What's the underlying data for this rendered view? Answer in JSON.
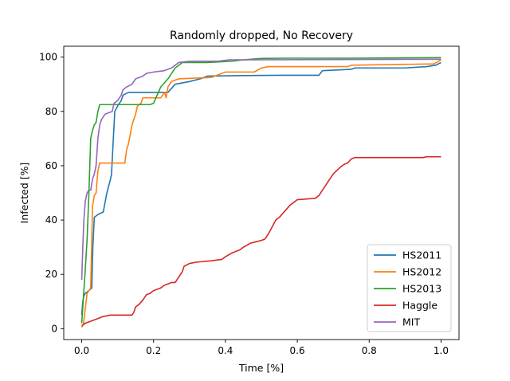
{
  "chart_data": {
    "type": "line",
    "title": "Randomly dropped, No Recovery",
    "xlabel": "Time [%]",
    "ylabel": "Infected [%]",
    "xlim": [
      -0.05,
      1.05
    ],
    "ylim": [
      -4,
      104
    ],
    "xticks": [
      0.0,
      0.2,
      0.4,
      0.6,
      0.8,
      1.0
    ],
    "xtick_labels": [
      "0.0",
      "0.2",
      "0.4",
      "0.6",
      "0.8",
      "1.0"
    ],
    "yticks": [
      0,
      20,
      40,
      60,
      80,
      100
    ],
    "ytick_labels": [
      "0",
      "20",
      "40",
      "60",
      "80",
      "100"
    ],
    "grid": false,
    "legend_position": "lower-right",
    "series": [
      {
        "name": "HS2011",
        "color": "#1f77b4",
        "points": [
          [
            0.0,
            5
          ],
          [
            0.003,
            10
          ],
          [
            0.006,
            12
          ],
          [
            0.01,
            13
          ],
          [
            0.02,
            14
          ],
          [
            0.028,
            15
          ],
          [
            0.031,
            30
          ],
          [
            0.035,
            41
          ],
          [
            0.045,
            42
          ],
          [
            0.06,
            43
          ],
          [
            0.07,
            50
          ],
          [
            0.08,
            55
          ],
          [
            0.083,
            57
          ],
          [
            0.088,
            70
          ],
          [
            0.092,
            80
          ],
          [
            0.1,
            82
          ],
          [
            0.11,
            84
          ],
          [
            0.115,
            86
          ],
          [
            0.13,
            87
          ],
          [
            0.18,
            87
          ],
          [
            0.24,
            87
          ],
          [
            0.26,
            90
          ],
          [
            0.3,
            91
          ],
          [
            0.33,
            92
          ],
          [
            0.35,
            93
          ],
          [
            0.45,
            93.2
          ],
          [
            0.55,
            93.3
          ],
          [
            0.66,
            93.3
          ],
          [
            0.67,
            95
          ],
          [
            0.75,
            95.5
          ],
          [
            0.76,
            96
          ],
          [
            0.9,
            96
          ],
          [
            0.96,
            96.5
          ],
          [
            0.985,
            97
          ],
          [
            1.0,
            98
          ]
        ]
      },
      {
        "name": "HS2012",
        "color": "#ff7f0e",
        "points": [
          [
            0.0,
            0.5
          ],
          [
            0.005,
            2
          ],
          [
            0.015,
            13
          ],
          [
            0.025,
            15
          ],
          [
            0.03,
            45
          ],
          [
            0.035,
            49
          ],
          [
            0.04,
            50
          ],
          [
            0.045,
            58
          ],
          [
            0.05,
            61
          ],
          [
            0.09,
            61
          ],
          [
            0.1,
            61
          ],
          [
            0.12,
            61
          ],
          [
            0.125,
            66
          ],
          [
            0.13,
            68
          ],
          [
            0.14,
            75
          ],
          [
            0.15,
            79
          ],
          [
            0.155,
            82
          ],
          [
            0.165,
            83
          ],
          [
            0.17,
            85
          ],
          [
            0.22,
            85
          ],
          [
            0.23,
            87
          ],
          [
            0.235,
            85
          ],
          [
            0.24,
            89
          ],
          [
            0.25,
            91
          ],
          [
            0.27,
            92
          ],
          [
            0.36,
            92.5
          ],
          [
            0.4,
            94.5
          ],
          [
            0.48,
            94.5
          ],
          [
            0.5,
            96
          ],
          [
            0.52,
            96.5
          ],
          [
            0.74,
            96.5
          ],
          [
            0.75,
            97
          ],
          [
            0.98,
            97.5
          ],
          [
            1.0,
            99
          ]
        ]
      },
      {
        "name": "HS2013",
        "color": "#2ca02c",
        "points": [
          [
            0.0,
            2
          ],
          [
            0.005,
            12
          ],
          [
            0.01,
            22
          ],
          [
            0.015,
            33
          ],
          [
            0.02,
            50
          ],
          [
            0.025,
            70
          ],
          [
            0.03,
            73
          ],
          [
            0.035,
            75
          ],
          [
            0.04,
            76
          ],
          [
            0.045,
            80
          ],
          [
            0.05,
            82.5
          ],
          [
            0.13,
            82.5
          ],
          [
            0.19,
            82.5
          ],
          [
            0.2,
            83
          ],
          [
            0.21,
            86
          ],
          [
            0.22,
            89
          ],
          [
            0.24,
            92
          ],
          [
            0.26,
            96
          ],
          [
            0.27,
            97
          ],
          [
            0.28,
            98
          ],
          [
            0.35,
            98
          ],
          [
            0.42,
            98.5
          ],
          [
            0.45,
            99
          ],
          [
            0.5,
            99.5
          ],
          [
            0.56,
            99.6
          ],
          [
            0.75,
            99.6
          ],
          [
            1.0,
            99.8
          ]
        ]
      },
      {
        "name": "Haggle",
        "color": "#d62728",
        "points": [
          [
            0.0,
            1
          ],
          [
            0.005,
            1.5
          ],
          [
            0.01,
            2
          ],
          [
            0.02,
            2.5
          ],
          [
            0.04,
            3.5
          ],
          [
            0.06,
            4.5
          ],
          [
            0.08,
            5
          ],
          [
            0.14,
            5
          ],
          [
            0.145,
            6
          ],
          [
            0.15,
            8
          ],
          [
            0.16,
            9
          ],
          [
            0.17,
            10.5
          ],
          [
            0.18,
            12.5
          ],
          [
            0.19,
            13
          ],
          [
            0.2,
            14
          ],
          [
            0.22,
            15
          ],
          [
            0.23,
            16
          ],
          [
            0.25,
            17
          ],
          [
            0.26,
            17
          ],
          [
            0.27,
            19
          ],
          [
            0.28,
            21
          ],
          [
            0.285,
            23
          ],
          [
            0.3,
            24
          ],
          [
            0.32,
            24.5
          ],
          [
            0.36,
            25
          ],
          [
            0.39,
            25.5
          ],
          [
            0.4,
            26.5
          ],
          [
            0.42,
            28
          ],
          [
            0.44,
            29
          ],
          [
            0.45,
            30
          ],
          [
            0.47,
            31.5
          ],
          [
            0.5,
            32.5
          ],
          [
            0.51,
            33
          ],
          [
            0.52,
            35
          ],
          [
            0.53,
            37.5
          ],
          [
            0.54,
            40
          ],
          [
            0.55,
            41
          ],
          [
            0.56,
            42.5
          ],
          [
            0.57,
            44
          ],
          [
            0.58,
            45.5
          ],
          [
            0.59,
            46.5
          ],
          [
            0.6,
            47.5
          ],
          [
            0.65,
            48
          ],
          [
            0.66,
            49
          ],
          [
            0.67,
            51
          ],
          [
            0.68,
            53
          ],
          [
            0.69,
            55
          ],
          [
            0.7,
            57
          ],
          [
            0.72,
            59.5
          ],
          [
            0.73,
            60.5
          ],
          [
            0.74,
            61
          ],
          [
            0.75,
            62.5
          ],
          [
            0.76,
            63
          ],
          [
            0.95,
            63
          ],
          [
            0.96,
            63.3
          ],
          [
            1.0,
            63.3
          ]
        ]
      },
      {
        "name": "MIT",
        "color": "#9467bd",
        "points": [
          [
            0.0,
            18
          ],
          [
            0.003,
            30
          ],
          [
            0.006,
            40
          ],
          [
            0.01,
            47
          ],
          [
            0.015,
            50
          ],
          [
            0.02,
            51
          ],
          [
            0.025,
            51
          ],
          [
            0.03,
            55
          ],
          [
            0.035,
            57
          ],
          [
            0.04,
            60
          ],
          [
            0.045,
            70
          ],
          [
            0.05,
            75
          ],
          [
            0.055,
            77
          ],
          [
            0.065,
            79
          ],
          [
            0.085,
            80
          ],
          [
            0.09,
            83
          ],
          [
            0.1,
            84
          ],
          [
            0.11,
            86
          ],
          [
            0.115,
            88
          ],
          [
            0.125,
            89
          ],
          [
            0.14,
            90
          ],
          [
            0.15,
            92
          ],
          [
            0.17,
            93
          ],
          [
            0.18,
            94
          ],
          [
            0.2,
            94.5
          ],
          [
            0.23,
            95
          ],
          [
            0.25,
            96
          ],
          [
            0.27,
            98
          ],
          [
            0.3,
            98.5
          ],
          [
            0.38,
            98.5
          ],
          [
            0.41,
            99
          ],
          [
            0.45,
            99
          ],
          [
            1.0,
            99.2
          ]
        ]
      }
    ]
  }
}
